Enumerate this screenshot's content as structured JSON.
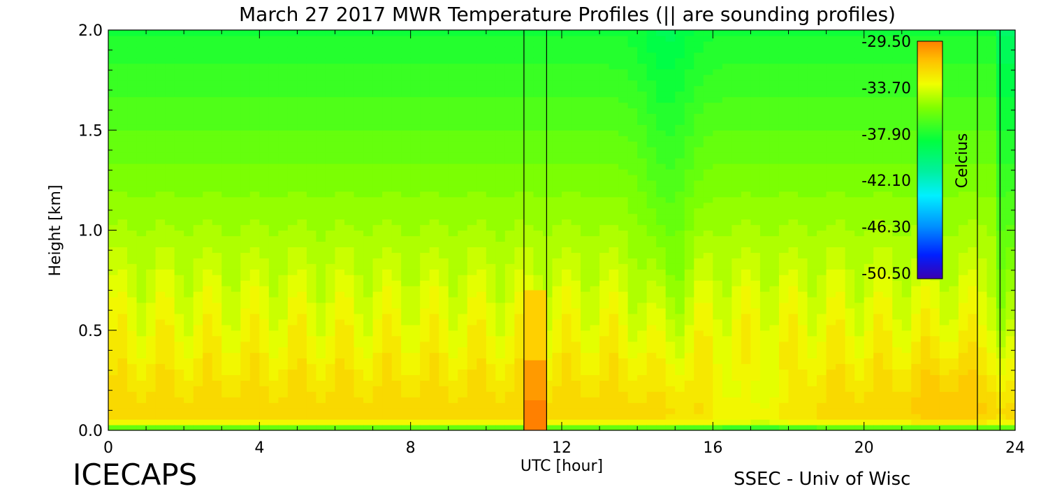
{
  "chart_data": {
    "type": "heatmap",
    "title": "March 27 2017 MWR Temperature Profiles (|| are sounding profiles)",
    "xlabel": "UTC [hour]",
    "ylabel": "Height [km]",
    "xlim": [
      0,
      24
    ],
    "ylim": [
      0,
      2.0
    ],
    "x_ticks": [
      "0",
      "4",
      "8",
      "12",
      "16",
      "20",
      "24"
    ],
    "x_tick_values": [
      0,
      4,
      8,
      12,
      16,
      20,
      24
    ],
    "y_ticks": [
      "0.0",
      "0.5",
      "1.0",
      "1.5",
      "2.0"
    ],
    "y_tick_values": [
      0.0,
      0.5,
      1.0,
      1.5,
      2.0
    ],
    "colorbar": {
      "label": "Celcius",
      "ticks": [
        "-29.50",
        "-33.70",
        "-37.90",
        "-42.10",
        "-46.30",
        "-50.50"
      ],
      "range": [
        -50.5,
        -29.5
      ]
    },
    "sounding_markers_utc": [
      11.0,
      11.6,
      23.0,
      23.6
    ],
    "data_gap_utc": [
      11.0,
      11.6
    ],
    "grid": false,
    "legend": "none"
  },
  "footer": {
    "left": "ICECAPS",
    "right": "SSEC - Univ of Wisc"
  }
}
